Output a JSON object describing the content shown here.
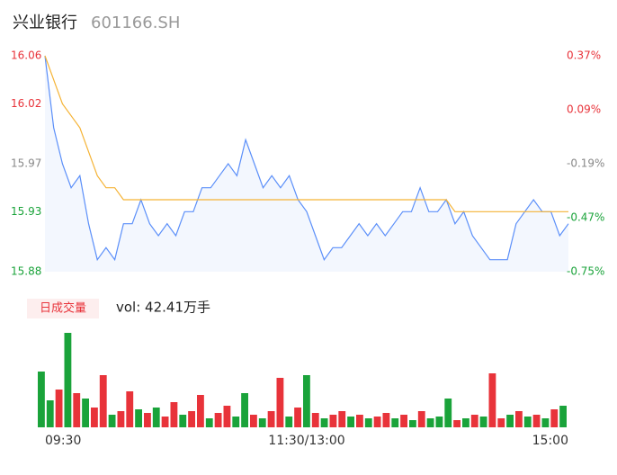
{
  "header": {
    "title": "兴业银行",
    "code": "601166.SH"
  },
  "chart_data": [
    {
      "type": "line",
      "x": [
        0,
        4,
        8,
        12,
        16,
        20,
        24,
        28,
        32,
        36,
        40,
        44,
        48,
        52,
        56,
        60,
        64,
        68,
        72,
        76,
        80,
        84,
        88,
        92,
        96,
        100,
        104,
        108,
        112,
        116,
        120,
        124,
        128,
        132,
        136,
        140,
        144,
        148,
        152,
        156,
        160,
        164,
        168,
        172,
        176,
        180,
        184,
        188,
        192,
        196,
        200,
        204,
        208,
        212,
        216,
        220,
        224,
        228,
        232,
        236,
        240
      ],
      "xlim": [
        0,
        240
      ],
      "xticks": [
        {
          "value": 0,
          "label": "09:30"
        },
        {
          "value": 120,
          "label": "11:30/13:00"
        },
        {
          "value": 240,
          "label": "15:00"
        }
      ],
      "ylim": [
        15.88,
        16.06
      ],
      "yticks": [
        16.06,
        16.02,
        15.97,
        15.93,
        15.88
      ],
      "ytick_colors": [
        "#e8333a",
        "#e8333a",
        "#888888",
        "#1aa33a",
        "#1aa33a"
      ],
      "y2lim": [
        -0.75,
        0.37
      ],
      "y2ticks": [
        {
          "value": 0.37,
          "label": "0.37%"
        },
        {
          "value": 0.09,
          "label": "0.09%"
        },
        {
          "value": -0.19,
          "label": "-0.19%"
        },
        {
          "value": -0.47,
          "label": "-0.47%"
        },
        {
          "value": -0.75,
          "label": "-0.75%"
        }
      ],
      "series": [
        {
          "color": "#5b8ff9",
          "fill": "#f3f7fe",
          "values": [
            16.06,
            16.0,
            15.97,
            15.95,
            15.96,
            15.92,
            15.89,
            15.9,
            15.89,
            15.92,
            15.92,
            15.94,
            15.92,
            15.91,
            15.92,
            15.91,
            15.93,
            15.93,
            15.95,
            15.95,
            15.96,
            15.97,
            15.96,
            15.99,
            15.97,
            15.95,
            15.96,
            15.95,
            15.96,
            15.94,
            15.93,
            15.91,
            15.89,
            15.9,
            15.9,
            15.91,
            15.92,
            15.91,
            15.92,
            15.91,
            15.92,
            15.93,
            15.93,
            15.95,
            15.93,
            15.93,
            15.94,
            15.92,
            15.93,
            15.91,
            15.9,
            15.89,
            15.89,
            15.89,
            15.92,
            15.93,
            15.94,
            15.93,
            15.93,
            15.91,
            15.92
          ]
        },
        {
          "color": "#f5b335",
          "values": [
            16.06,
            16.04,
            16.02,
            16.01,
            16.0,
            15.98,
            15.96,
            15.95,
            15.95,
            15.94,
            15.94,
            15.94,
            15.94,
            15.94,
            15.94,
            15.94,
            15.94,
            15.94,
            15.94,
            15.94,
            15.94,
            15.94,
            15.94,
            15.94,
            15.94,
            15.94,
            15.94,
            15.94,
            15.94,
            15.94,
            15.94,
            15.94,
            15.94,
            15.94,
            15.94,
            15.94,
            15.94,
            15.94,
            15.94,
            15.94,
            15.94,
            15.94,
            15.94,
            15.94,
            15.94,
            15.94,
            15.94,
            15.93,
            15.93,
            15.93,
            15.93,
            15.93,
            15.93,
            15.93,
            15.93,
            15.93,
            15.93,
            15.93,
            15.93,
            15.93,
            15.93
          ]
        }
      ]
    },
    {
      "type": "bar",
      "legend_button": "日成交量",
      "vol_label": "vol: 42.41万手",
      "ylim": [
        0,
        110
      ],
      "values": [
        62,
        30,
        42,
        105,
        38,
        32,
        22,
        58,
        14,
        18,
        40,
        20,
        16,
        22,
        12,
        28,
        14,
        18,
        36,
        10,
        16,
        24,
        12,
        38,
        14,
        10,
        18,
        55,
        12,
        22,
        58,
        16,
        10,
        14,
        18,
        12,
        14,
        10,
        12,
        16,
        10,
        14,
        8,
        18,
        10,
        12,
        32,
        8,
        10,
        14,
        12,
        60,
        10,
        14,
        18,
        12,
        14,
        10,
        20,
        24
      ],
      "colors": [
        "#1aa33a",
        "#1aa33a",
        "#e8333a",
        "#1aa33a",
        "#e8333a",
        "#1aa33a",
        "#e8333a",
        "#e8333a",
        "#1aa33a",
        "#e8333a",
        "#e8333a",
        "#1aa33a",
        "#e8333a",
        "#1aa33a",
        "#e8333a",
        "#e8333a",
        "#1aa33a",
        "#e8333a",
        "#e8333a",
        "#1aa33a",
        "#e8333a",
        "#e8333a",
        "#1aa33a",
        "#1aa33a",
        "#e8333a",
        "#1aa33a",
        "#e8333a",
        "#e8333a",
        "#1aa33a",
        "#e8333a",
        "#1aa33a",
        "#e8333a",
        "#1aa33a",
        "#e8333a",
        "#e8333a",
        "#1aa33a",
        "#e8333a",
        "#1aa33a",
        "#e8333a",
        "#e8333a",
        "#1aa33a",
        "#e8333a",
        "#1aa33a",
        "#e8333a",
        "#1aa33a",
        "#1aa33a",
        "#1aa33a",
        "#e8333a",
        "#1aa33a",
        "#e8333a",
        "#1aa33a",
        "#e8333a",
        "#e8333a",
        "#1aa33a",
        "#e8333a",
        "#1aa33a",
        "#e8333a",
        "#1aa33a",
        "#e8333a",
        "#1aa33a"
      ]
    }
  ]
}
